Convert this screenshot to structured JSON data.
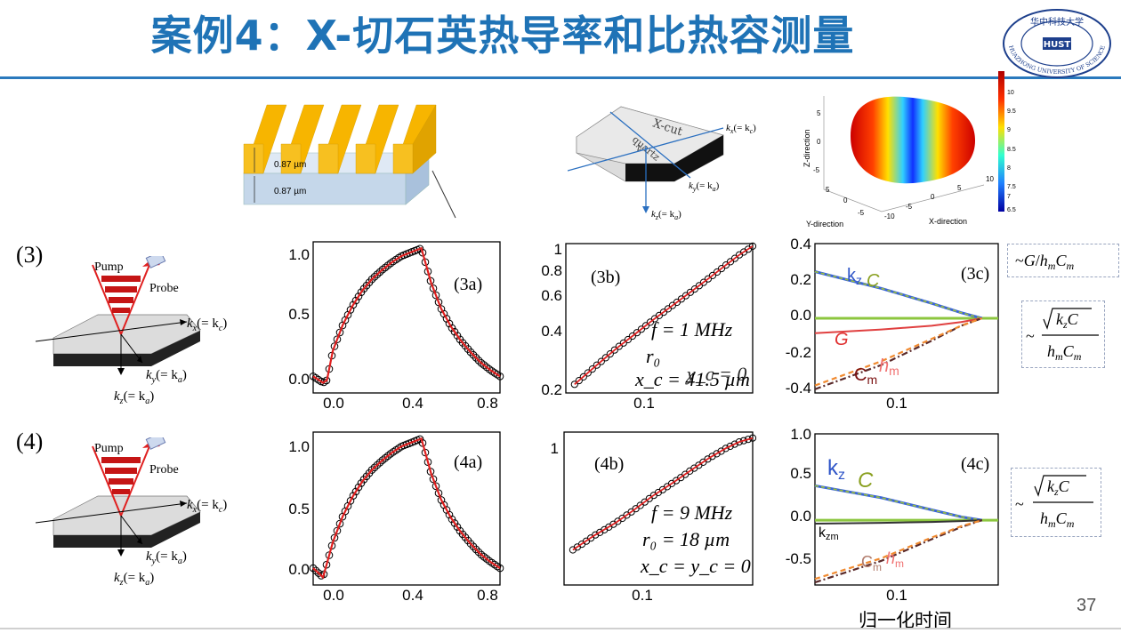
{
  "slide": {
    "title": "案例4：X-切石英热导率和比热容测量",
    "page_number": "37",
    "x_caption": "归一化时间",
    "logo_text": "HUAZHONG UNIVERSITY OF SCIENCE AND TECHNOLOGY",
    "logo_chinese": "华中科技大学",
    "colors": {
      "title": "#1f73b6",
      "rule": "#2a79bd",
      "fit": "#e02020",
      "grating_gold": "#f7b500",
      "grating_blue": "#c5d7ea"
    }
  },
  "top_figures": {
    "grating": {
      "label_top": "0.87 µm",
      "label_bottom": "0.87 µm"
    },
    "crystal": {
      "text1": "X-cut",
      "text2": "quartz",
      "text3": "z",
      "kx": "k",
      "kx_sub": "x",
      "kx_eq": "(= k",
      "kx_eq_sub": "c",
      "ky": "k",
      "ky_sub": "y",
      "ky_eq": "(= k",
      "ky_eq_sub": "a",
      "kz": "k",
      "kz_sub": "z",
      "kz_eq": "(= k",
      "kz_eq_sub": "a"
    },
    "ellipsoid": {
      "ylabel": "Z-direction",
      "xlabel": "X-direction",
      "ylabel2": "Y-direction",
      "colorbar_ticks": [
        "10",
        "9.5",
        "9",
        "8.5",
        "8",
        "7.5",
        "7",
        "6.5"
      ],
      "z_ticks": [
        "5",
        "0",
        "-5"
      ],
      "x_ticks": [
        "10",
        "5",
        "0",
        "-5",
        "-10"
      ],
      "y_ticks": [
        "5",
        "0",
        "-5"
      ]
    }
  },
  "rows": [
    {
      "row_label": "(3)",
      "schematic": {
        "pump": "Pump",
        "probe": "Probe",
        "kx": "k",
        "kx_sub": "x",
        "kx_eq": "(= k",
        "kx_eq_sub": "c",
        "ky": "k",
        "ky_sub": "y",
        "ky_eq": "(= k",
        "ky_eq_sub": "a",
        "kz": "k",
        "kz_sub": "z",
        "kz_eq": "(= k",
        "kz_eq_sub": "a"
      },
      "plot_a": {
        "label": "(3a)",
        "y_ticks": [
          "1.0",
          "0.5",
          "0.0"
        ],
        "x_ticks": [
          "0.0",
          "0.4",
          "0.8"
        ]
      },
      "plot_b": {
        "label": "(3b)",
        "y_ticks": [
          "1",
          "0.8",
          "0.6",
          "0.4",
          "0.2"
        ],
        "x_ticks": [
          "0.1"
        ],
        "ann1": "f = 1 MHz",
        "ann2": "r₀",
        "ann3": "x_c = 41.5 µm",
        "ann3_overlay": "y_c = 0"
      },
      "plot_c": {
        "label": "(3c)",
        "y_ticks": [
          "0.4",
          "0.2",
          "0.0",
          "-0.2",
          "-0.4"
        ],
        "x_ticks": [
          "0.1"
        ],
        "curve_labels": {
          "kz": "k",
          "kz_sub": "z",
          "C": "C",
          "G": "G",
          "Cm": "C",
          "Cm_sub": "m",
          "hm": "h",
          "hm_sub": "m"
        }
      },
      "box_top": "~G/h_mC_m",
      "box_side": {
        "prefix": "~",
        "numerator": "√(k_zC)",
        "denominator": "h_mC_m"
      }
    },
    {
      "row_label": "(4)",
      "schematic": {
        "pump": "Pump",
        "probe": "Probe",
        "kx": "k",
        "kx_sub": "x",
        "kx_eq": "(= k",
        "kx_eq_sub": "c",
        "ky": "k",
        "ky_sub": "y",
        "ky_eq": "(= k",
        "ky_eq_sub": "a",
        "kz": "k",
        "kz_sub": "z",
        "kz_eq": "(= k",
        "kz_eq_sub": "a"
      },
      "plot_a": {
        "label": "(4a)",
        "y_ticks": [
          "1.0",
          "0.5",
          "0.0"
        ],
        "x_ticks": [
          "0.0",
          "0.4",
          "0.8"
        ]
      },
      "plot_b": {
        "label": "(4b)",
        "y_ticks": [
          "1"
        ],
        "x_ticks": [
          "0.1"
        ],
        "ann1": "f = 9 MHz",
        "ann2": "r₀ = 18 µm",
        "ann3": "x_c = y_c = 0"
      },
      "plot_c": {
        "label": "(4c)",
        "y_ticks": [
          "1.0",
          "0.5",
          "0.0",
          "-0.5"
        ],
        "x_ticks": [
          "0.1"
        ],
        "curve_labels": {
          "kz": "k",
          "kz_sub": "z",
          "C": "C",
          "kzm": "k",
          "kzm_sub": "zm",
          "Cm": "C",
          "Cm_sub": "m",
          "hm": "h",
          "hm_sub": "m"
        }
      },
      "box_side": {
        "prefix": "~",
        "numerator": "√(k_zC)",
        "denominator": "h_mC_m"
      }
    }
  ],
  "chart_data": [
    {
      "type": "scatter",
      "panel": "(3a)",
      "xlim": [
        -0.05,
        0.9
      ],
      "ylim": [
        -0.08,
        1.1
      ],
      "x_ticks": [
        0.0,
        0.4,
        0.8
      ],
      "y_ticks": [
        0.0,
        0.5,
        1.0
      ],
      "series": [
        {
          "values_desc": "rise to 1.05 at t=0.5 then decay to ~0.05 at 0.9"
        }
      ],
      "points": [
        [
          -0.05,
          0.05
        ],
        [
          0.0,
          0.0
        ],
        [
          0.02,
          0.02
        ],
        [
          0.05,
          0.25
        ],
        [
          0.1,
          0.45
        ],
        [
          0.15,
          0.6
        ],
        [
          0.2,
          0.72
        ],
        [
          0.25,
          0.81
        ],
        [
          0.3,
          0.88
        ],
        [
          0.35,
          0.94
        ],
        [
          0.4,
          0.99
        ],
        [
          0.45,
          1.02
        ],
        [
          0.5,
          1.05
        ],
        [
          0.55,
          0.78
        ],
        [
          0.6,
          0.58
        ],
        [
          0.65,
          0.44
        ],
        [
          0.7,
          0.33
        ],
        [
          0.75,
          0.24
        ],
        [
          0.8,
          0.16
        ],
        [
          0.85,
          0.1
        ],
        [
          0.9,
          0.05
        ]
      ]
    },
    {
      "type": "scatter",
      "panel": "(3b)",
      "xscale": "log",
      "yscale": "log",
      "xlim": [
        0.04,
        0.5
      ],
      "ylim": [
        0.2,
        1.05
      ],
      "x_ticks": [
        0.1
      ],
      "y_ticks": [
        0.2,
        0.4,
        0.6,
        0.8,
        1.0
      ],
      "points": [
        [
          0.045,
          0.22
        ],
        [
          0.06,
          0.27
        ],
        [
          0.08,
          0.33
        ],
        [
          0.1,
          0.38
        ],
        [
          0.13,
          0.45
        ],
        [
          0.17,
          0.53
        ],
        [
          0.22,
          0.62
        ],
        [
          0.28,
          0.72
        ],
        [
          0.35,
          0.83
        ],
        [
          0.42,
          0.93
        ],
        [
          0.5,
          1.02
        ]
      ]
    },
    {
      "type": "line",
      "panel": "(3c)",
      "xscale": "log",
      "xlim": [
        0.04,
        0.5
      ],
      "ylim": [
        -0.4,
        0.4
      ],
      "x_ticks": [
        0.1
      ],
      "y_ticks": [
        -0.4,
        -0.2,
        0.0,
        0.2,
        0.4
      ],
      "series": [
        {
          "name": "kz",
          "values": [
            [
              0.04,
              0.25
            ],
            [
              0.1,
              0.16
            ],
            [
              0.2,
              0.08
            ],
            [
              0.3,
              0.03
            ],
            [
              0.4,
              0.0
            ]
          ]
        },
        {
          "name": "C",
          "values": [
            [
              0.04,
              0.25
            ],
            [
              0.1,
              0.16
            ],
            [
              0.2,
              0.08
            ],
            [
              0.3,
              0.03
            ],
            [
              0.4,
              0.0
            ]
          ]
        },
        {
          "name": "G",
          "values": [
            [
              0.04,
              -0.08
            ],
            [
              0.1,
              -0.06
            ],
            [
              0.2,
              -0.04
            ],
            [
              0.3,
              -0.02
            ],
            [
              0.4,
              0.0
            ]
          ]
        },
        {
          "name": "Cm",
          "values": [
            [
              0.04,
              -0.38
            ],
            [
              0.1,
              -0.25
            ],
            [
              0.2,
              -0.12
            ],
            [
              0.3,
              -0.04
            ],
            [
              0.4,
              0.0
            ]
          ]
        },
        {
          "name": "hm",
          "values": [
            [
              0.04,
              -0.36
            ],
            [
              0.1,
              -0.23
            ],
            [
              0.2,
              -0.11
            ],
            [
              0.3,
              -0.04
            ],
            [
              0.4,
              0.0
            ]
          ]
        }
      ]
    },
    {
      "type": "scatter",
      "panel": "(4a)",
      "xlim": [
        -0.05,
        0.9
      ],
      "ylim": [
        -0.08,
        1.1
      ],
      "x_ticks": [
        0.0,
        0.4,
        0.8
      ],
      "y_ticks": [
        0.0,
        0.5,
        1.0
      ],
      "points": [
        [
          -0.05,
          0.05
        ],
        [
          0.0,
          -0.02
        ],
        [
          0.05,
          0.25
        ],
        [
          0.1,
          0.45
        ],
        [
          0.15,
          0.6
        ],
        [
          0.2,
          0.72
        ],
        [
          0.25,
          0.81
        ],
        [
          0.3,
          0.88
        ],
        [
          0.35,
          0.94
        ],
        [
          0.4,
          0.99
        ],
        [
          0.45,
          1.02
        ],
        [
          0.5,
          1.05
        ],
        [
          0.55,
          0.78
        ],
        [
          0.6,
          0.58
        ],
        [
          0.65,
          0.44
        ],
        [
          0.7,
          0.33
        ],
        [
          0.75,
          0.24
        ],
        [
          0.8,
          0.16
        ],
        [
          0.85,
          0.1
        ],
        [
          0.9,
          0.05
        ]
      ]
    },
    {
      "type": "scatter",
      "panel": "(4b)",
      "xscale": "log",
      "yscale": "log",
      "xlim": [
        0.04,
        0.5
      ],
      "ylim": [
        0.3,
        1.05
      ],
      "x_ticks": [
        0.1
      ],
      "y_ticks": [
        1.0
      ],
      "points": [
        [
          0.045,
          0.4
        ],
        [
          0.06,
          0.45
        ],
        [
          0.08,
          0.5
        ],
        [
          0.1,
          0.55
        ],
        [
          0.13,
          0.62
        ],
        [
          0.17,
          0.69
        ],
        [
          0.22,
          0.77
        ],
        [
          0.28,
          0.85
        ],
        [
          0.35,
          0.92
        ],
        [
          0.42,
          0.97
        ],
        [
          0.5,
          1.0
        ]
      ]
    },
    {
      "type": "line",
      "panel": "(4c)",
      "xscale": "log",
      "xlim": [
        0.04,
        0.5
      ],
      "ylim": [
        -0.75,
        1.0
      ],
      "x_ticks": [
        0.1
      ],
      "y_ticks": [
        -0.5,
        0.0,
        0.5,
        1.0
      ],
      "series": [
        {
          "name": "kz",
          "values": [
            [
              0.04,
              0.4
            ],
            [
              0.1,
              0.26
            ],
            [
              0.2,
              0.12
            ],
            [
              0.3,
              0.04
            ],
            [
              0.4,
              0.0
            ]
          ]
        },
        {
          "name": "C",
          "values": [
            [
              0.04,
              0.4
            ],
            [
              0.1,
              0.26
            ],
            [
              0.2,
              0.12
            ],
            [
              0.3,
              0.04
            ],
            [
              0.4,
              0.0
            ]
          ]
        },
        {
          "name": "kzm",
          "values": [
            [
              0.04,
              -0.04
            ],
            [
              0.1,
              -0.03
            ],
            [
              0.2,
              -0.02
            ],
            [
              0.3,
              -0.01
            ],
            [
              0.4,
              0.0
            ]
          ]
        },
        {
          "name": "Cm",
          "values": [
            [
              0.04,
              -0.72
            ],
            [
              0.1,
              -0.47
            ],
            [
              0.2,
              -0.22
            ],
            [
              0.3,
              -0.08
            ],
            [
              0.4,
              0.0
            ]
          ]
        },
        {
          "name": "hm",
          "values": [
            [
              0.04,
              -0.68
            ],
            [
              0.1,
              -0.44
            ],
            [
              0.2,
              -0.2
            ],
            [
              0.3,
              -0.07
            ],
            [
              0.4,
              0.0
            ]
          ]
        }
      ]
    }
  ]
}
